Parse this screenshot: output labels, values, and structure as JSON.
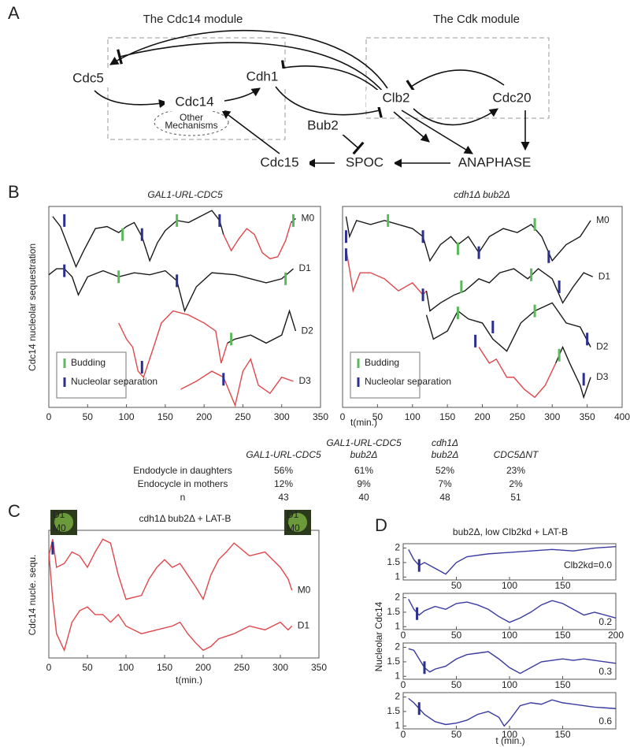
{
  "panel_labels": [
    "A",
    "B",
    "C",
    "D"
  ],
  "diagram": {
    "modules": [
      "The Cdc14 module",
      "The Cdk module"
    ],
    "nodes": [
      "Cdc5",
      "Cdh1",
      "Cdc14",
      "Clb2",
      "Cdc20",
      "Bub2",
      "Cdc15",
      "SPOC",
      "ANAPHASE"
    ],
    "other": [
      "Other",
      "Mechanisms"
    ]
  },
  "table": {
    "columns": [
      [
        "GAL1-URL-CDC5"
      ],
      [
        "GAL1-URL-CDC5",
        "bub2Δ"
      ],
      [
        "cdh1Δ",
        "bub2Δ"
      ],
      [
        "CDC5ΔNT"
      ]
    ],
    "rows": [
      [
        "Endodycle in daughters",
        "56%",
        "61%",
        "52%",
        "23%"
      ],
      [
        "Endocycle in mothers",
        "12%",
        "9%",
        "7%",
        "2%"
      ],
      [
        "n",
        "43",
        "40",
        "48",
        "51"
      ]
    ]
  },
  "chart_data": [
    {
      "type": "line",
      "title": "GAL1-URL-CDC5",
      "ylabel": "Cdc14 nucleolar sequestration",
      "xlim": [
        0,
        350
      ],
      "xticks": [
        0,
        50,
        100,
        150,
        200,
        250,
        300,
        350
      ],
      "ylim": [
        0,
        10
      ],
      "legend": "lower left",
      "series": [
        {
          "name": "M0",
          "color": "#1a1a1a",
          "x": [
            5,
            15,
            25,
            35,
            45,
            60,
            75,
            90,
            100,
            110,
            120,
            130,
            140,
            150,
            165,
            180,
            195,
            210,
            220,
            225,
            270,
            312,
            318
          ],
          "values": [
            9.5,
            9.0,
            8.0,
            7.0,
            7.8,
            8.9,
            9.0,
            8.7,
            9.0,
            9.2,
            8.5,
            7.3,
            8.2,
            8.8,
            9.3,
            9.2,
            9.5,
            9.8,
            9.3,
            8.6,
            null,
            9.2,
            9.4
          ]
        },
        {
          "color": "#e0474c",
          "x": [
            225,
            235,
            245,
            255,
            265,
            275,
            285,
            295,
            305,
            312
          ],
          "values": [
            8.6,
            7.8,
            8.4,
            8.9,
            8.6,
            7.7,
            7.4,
            7.5,
            8.3,
            9.2
          ]
        },
        {
          "name": "D1",
          "color": "#1a1a1a",
          "x": [
            0,
            10,
            20,
            30,
            38,
            50,
            70,
            90,
            110,
            130,
            150,
            165,
            175,
            190,
            210,
            240,
            260,
            280,
            300,
            315
          ],
          "values": [
            6.6,
            6.9,
            6.9,
            6.5,
            5.6,
            6.5,
            6.8,
            6.5,
            6.7,
            6.6,
            6.8,
            6.3,
            4.8,
            6.0,
            6.7,
            6.6,
            6.4,
            6.2,
            6.4,
            6.9
          ]
        },
        {
          "color": "#e0474c",
          "x": [
            90,
            100,
            108,
            115,
            122,
            135,
            145,
            160,
            180,
            200,
            215,
            222,
            230
          ],
          "values": [
            4.2,
            3.4,
            3.0,
            1.8,
            1.5,
            3.0,
            4.2,
            4.8,
            4.6,
            4.2,
            3.8,
            2.2,
            3.2
          ]
        },
        {
          "name": "D2",
          "color": "#1a1a1a",
          "x": [
            230,
            240,
            260,
            280,
            300,
            310,
            318
          ],
          "values": [
            3.2,
            3.4,
            3.6,
            3.2,
            3.6,
            4.8,
            3.8
          ]
        },
        {
          "name": "D3",
          "color": "#e0474c",
          "x": [
            170,
            190,
            210,
            225,
            240,
            250,
            260,
            270,
            285,
            300,
            315
          ],
          "values": [
            0.9,
            1.3,
            1.8,
            1.5,
            0.1,
            1.8,
            2.4,
            1.1,
            0.7,
            1.5,
            1.3
          ]
        }
      ],
      "markers": [
        {
          "name": "Budding",
          "color": "#5cb85c",
          "x": [
            95,
            165,
            315,
            90,
            305,
            235
          ],
          "y": [
            8.6,
            9.3,
            9.3,
            6.5,
            6.4,
            3.4
          ]
        },
        {
          "name": "Nucleolar separation",
          "color": "#2b2f8f",
          "x": [
            20,
            120,
            220,
            20,
            165,
            120,
            225
          ],
          "y": [
            9.3,
            8.6,
            9.3,
            6.8,
            6.3,
            2.0,
            1.4
          ]
        }
      ]
    },
    {
      "type": "line",
      "title": "cdh1Δ bub2Δ",
      "xlabel": "t(min.)",
      "xlim": [
        0,
        400
      ],
      "xticks": [
        0,
        50,
        100,
        150,
        200,
        250,
        300,
        350,
        400
      ],
      "ylim": [
        0,
        10
      ],
      "legend": "lower left",
      "series": [
        {
          "name": "M0",
          "color": "#1a1a1a",
          "x": [
            5,
            10,
            20,
            40,
            60,
            80,
            100,
            115,
            125,
            140,
            155,
            165,
            180,
            195,
            210,
            230,
            250,
            270,
            285,
            300,
            320,
            340,
            355
          ],
          "values": [
            9.5,
            8.5,
            9.3,
            9.1,
            9.3,
            9.1,
            8.9,
            8.5,
            7.3,
            8.1,
            8.5,
            8.1,
            8.5,
            7.7,
            8.5,
            8.9,
            8.7,
            9.1,
            8.5,
            7.3,
            8.1,
            8.5,
            9.3
          ]
        },
        {
          "color": "#e0474c",
          "x": [
            5,
            15,
            25,
            40,
            60,
            80,
            100,
            115,
            120
          ],
          "values": [
            7.9,
            5.8,
            6.7,
            6.7,
            6.4,
            5.8,
            6.2,
            5.6,
            5.8
          ]
        },
        {
          "name": "D1",
          "color": "#1a1a1a",
          "x": [
            120,
            125,
            140,
            160,
            175,
            195,
            210,
            225,
            245,
            265,
            280,
            300,
            315,
            330,
            345,
            358
          ],
          "values": [
            5.8,
            4.8,
            5.2,
            5.6,
            5.8,
            6.4,
            6.2,
            6.7,
            6.9,
            6.4,
            6.9,
            6.4,
            5.2,
            6.0,
            6.7,
            6.5
          ]
        },
        {
          "name": "D2",
          "color": "#1a1a1a",
          "x": [
            120,
            130,
            150,
            165,
            180,
            200,
            215,
            235,
            255,
            275,
            300,
            320,
            340,
            355
          ],
          "values": [
            4.6,
            3.4,
            3.8,
            4.8,
            4.4,
            4.2,
            3.4,
            2.8,
            4.2,
            4.8,
            5.2,
            4.2,
            4.0,
            3.0
          ]
        },
        {
          "color": "#e0474c",
          "x": [
            195,
            210,
            220,
            235,
            245,
            260,
            275,
            290,
            305
          ],
          "values": [
            3.0,
            2.2,
            2.4,
            1.5,
            1.5,
            0.9,
            0.5,
            1.1,
            2.2
          ]
        },
        {
          "name": "D3",
          "color": "#1a1a1a",
          "x": [
            305,
            315,
            325,
            340,
            345,
            355
          ],
          "values": [
            2.2,
            3.0,
            2.2,
            1.1,
            0.5,
            1.5
          ]
        }
      ],
      "markers": [
        {
          "name": "Budding",
          "color": "#5cb85c",
          "x": [
            65,
            165,
            275,
            170,
            270,
            165,
            275,
            310
          ],
          "y": [
            9.3,
            7.9,
            9.1,
            6.0,
            6.6,
            4.7,
            4.8,
            2.6
          ]
        },
        {
          "name": "Nucleolar separation",
          "color": "#2b2f8f",
          "x": [
            5,
            115,
            195,
            295,
            5,
            115,
            310,
            215,
            350,
            190,
            345
          ],
          "y": [
            8.5,
            8.5,
            7.7,
            7.5,
            7.6,
            5.6,
            6.0,
            4.0,
            3.4,
            3.3,
            1.4
          ]
        }
      ]
    },
    {
      "type": "line",
      "title": "cdh1Δ bub2Δ + LAT-B",
      "xlabel": "t(min.)",
      "ylabel": "Cdc14 nucle. sequ.",
      "xlim": [
        0,
        350
      ],
      "xticks": [
        0,
        50,
        100,
        150,
        200,
        250,
        300,
        350
      ],
      "ylim": [
        0,
        10
      ],
      "insets": [
        [
          "D1",
          "M0"
        ],
        [
          "D1",
          "M0"
        ]
      ],
      "series": [
        {
          "name": "M0",
          "color": "#e0474c",
          "x": [
            0,
            5,
            10,
            20,
            30,
            40,
            50,
            60,
            70,
            80,
            90,
            100,
            120,
            130,
            140,
            150,
            160,
            170,
            180,
            190,
            200,
            210,
            220,
            230,
            240,
            260,
            280,
            300,
            310,
            315
          ],
          "values": [
            8.0,
            9.3,
            7.1,
            7.4,
            8.3,
            8.0,
            7.1,
            8.3,
            9.3,
            9.0,
            6.5,
            4.6,
            4.9,
            6.2,
            7.1,
            7.7,
            7.1,
            7.4,
            6.5,
            5.6,
            4.6,
            6.5,
            7.7,
            8.3,
            9.0,
            8.0,
            8.3,
            7.1,
            6.2,
            5.3
          ]
        },
        {
          "name": "D1",
          "color": "#e0474c",
          "x": [
            0,
            5,
            10,
            20,
            30,
            40,
            50,
            60,
            70,
            80,
            90,
            100,
            120,
            140,
            160,
            170,
            180,
            190,
            200,
            210,
            220,
            240,
            260,
            280,
            300,
            310,
            315
          ],
          "values": [
            8.3,
            4.6,
            1.9,
            0.6,
            2.8,
            3.7,
            4.0,
            3.4,
            3.4,
            2.8,
            3.4,
            2.5,
            1.9,
            2.2,
            2.5,
            2.8,
            1.9,
            1.2,
            0.6,
            0.9,
            1.5,
            1.9,
            2.5,
            2.2,
            2.8,
            2.2,
            2.5
          ]
        }
      ],
      "markers": [
        {
          "color": "#2b2f8f",
          "x": [
            5
          ],
          "y": [
            8.6
          ]
        }
      ]
    },
    {
      "type": "line",
      "title": "bub2Δ, low Clb2kd + LAT-B",
      "ylabel": "Nucleolar Cdc14",
      "annotation": "Clb2kd=0.0",
      "xlim": [
        0,
        200
      ],
      "xticks": [
        50,
        100,
        150
      ],
      "ylim": [
        0.9,
        2.15
      ],
      "yticks": [
        1,
        1.5,
        2
      ],
      "series": [
        {
          "color": "#3a3aa0",
          "x": [
            5,
            10,
            15,
            20,
            30,
            40,
            50,
            60,
            80,
            100,
            120,
            140,
            160,
            180,
            200
          ],
          "values": [
            1.95,
            1.6,
            1.4,
            1.5,
            1.3,
            1.1,
            1.5,
            1.7,
            1.8,
            1.85,
            1.9,
            1.95,
            1.9,
            2.0,
            2.05
          ]
        }
      ],
      "markers": [
        {
          "color": "#2b2f8f",
          "x": [
            15
          ],
          "y": [
            1.4
          ]
        }
      ]
    },
    {
      "type": "line",
      "annotation": "0.2",
      "xlim": [
        0,
        200
      ],
      "xticks": [
        0,
        50,
        100,
        150,
        200
      ],
      "ylim": [
        0.9,
        2.15
      ],
      "yticks": [
        1,
        1.5,
        2
      ],
      "series": [
        {
          "color": "#3a3aa0",
          "x": [
            5,
            10,
            15,
            20,
            30,
            40,
            50,
            60,
            70,
            80,
            90,
            100,
            110,
            120,
            130,
            140,
            150,
            160,
            170,
            180,
            200
          ],
          "values": [
            1.95,
            1.6,
            1.4,
            1.55,
            1.7,
            1.6,
            1.8,
            1.85,
            1.75,
            1.6,
            1.35,
            1.15,
            1.3,
            1.5,
            1.75,
            1.9,
            1.8,
            1.6,
            1.4,
            1.5,
            1.3
          ]
        }
      ],
      "markers": [
        {
          "color": "#2b2f8f",
          "x": [
            13
          ],
          "y": [
            1.45
          ]
        }
      ]
    },
    {
      "type": "line",
      "annotation": "0.3",
      "xlim": [
        0,
        200
      ],
      "xticks": [
        0,
        50,
        100,
        150
      ],
      "ylim": [
        0.9,
        2.15
      ],
      "yticks": [
        1,
        1.5,
        2
      ],
      "series": [
        {
          "color": "#3a3aa0",
          "x": [
            5,
            10,
            15,
            20,
            25,
            30,
            40,
            50,
            60,
            70,
            80,
            90,
            100,
            110,
            120,
            130,
            140,
            150,
            160,
            170,
            180,
            200
          ],
          "values": [
            1.95,
            1.9,
            1.6,
            1.3,
            1.15,
            1.25,
            1.35,
            1.6,
            1.75,
            1.8,
            1.85,
            1.6,
            1.3,
            1.1,
            1.3,
            1.5,
            1.55,
            1.6,
            1.55,
            1.6,
            1.55,
            1.45
          ]
        }
      ],
      "markers": [
        {
          "color": "#2b2f8f",
          "x": [
            20
          ],
          "y": [
            1.3
          ]
        }
      ]
    },
    {
      "type": "line",
      "annotation": "0.6",
      "xlabel": "t (min.)",
      "xlim": [
        0,
        200
      ],
      "xticks": [
        0,
        50,
        100,
        150
      ],
      "ylim": [
        0.9,
        2.15
      ],
      "yticks": [
        1,
        1.5,
        2
      ],
      "series": [
        {
          "color": "#3a3aa0",
          "x": [
            5,
            10,
            15,
            20,
            30,
            40,
            50,
            60,
            70,
            80,
            90,
            95,
            100,
            110,
            120,
            130,
            140,
            150,
            160,
            170,
            180,
            200
          ],
          "values": [
            1.95,
            1.8,
            1.6,
            1.4,
            1.15,
            1.05,
            1.1,
            1.2,
            1.4,
            1.5,
            1.3,
            1.0,
            1.2,
            1.7,
            1.8,
            1.75,
            1.9,
            1.8,
            1.75,
            1.7,
            1.65,
            1.6
          ]
        }
      ],
      "markers": [
        {
          "color": "#2b2f8f",
          "x": [
            15
          ],
          "y": [
            1.6
          ]
        }
      ]
    }
  ]
}
